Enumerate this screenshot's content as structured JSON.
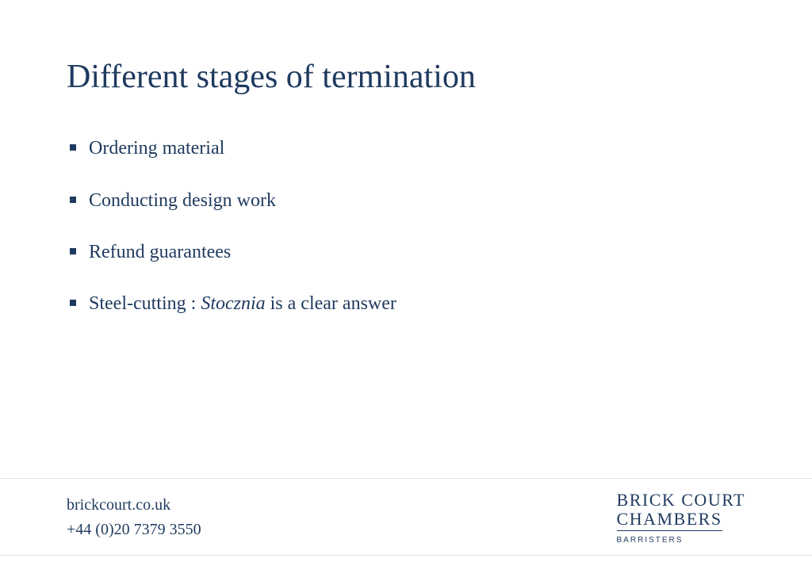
{
  "title": "Different stages of termination",
  "bullets": {
    "b0": "Ordering material",
    "b1": "Conducting design work",
    "b2": "Refund guarantees",
    "b3_prefix": "Steel-cutting : ",
    "b3_italic": "Stocznia",
    "b3_suffix": " is a clear answer"
  },
  "footer": {
    "website": "brickcourt.co.uk",
    "phone": "+44 (0)20 7379 3550",
    "brand_line1": "BRICK COURT",
    "brand_line2": "CHAMBERS",
    "brand_sub": "BARRISTERS"
  },
  "colors": {
    "text": "#1f3a5f",
    "background": "#ffffff",
    "rule": "#e2e2e2"
  },
  "typography": {
    "title_fontsize": 42,
    "bullet_fontsize": 24,
    "footer_fontsize": 20,
    "brand_fontsize": 22,
    "brand_sub_fontsize": 10
  }
}
